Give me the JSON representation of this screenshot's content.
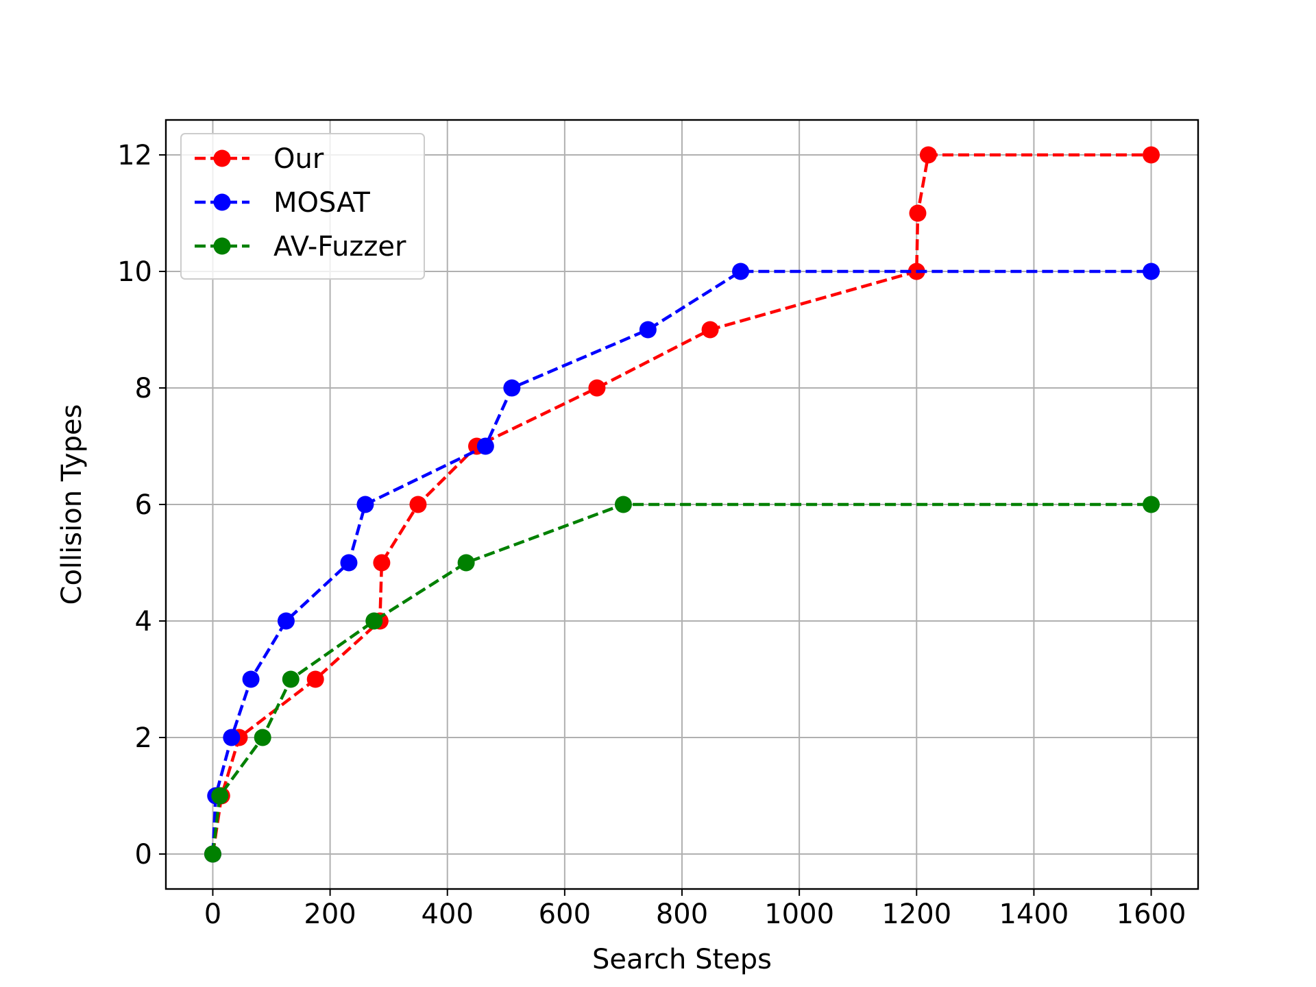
{
  "chart_data": {
    "type": "line",
    "xlabel": "Search Steps",
    "ylabel": "Collision Types",
    "xlim": [
      -80,
      1680
    ],
    "ylim": [
      -0.6,
      12.6
    ],
    "xticks": [
      0,
      200,
      400,
      600,
      800,
      1000,
      1200,
      1400,
      1600
    ],
    "yticks": [
      0,
      2,
      4,
      6,
      8,
      10,
      12
    ],
    "grid": true,
    "legend_position": "top-left",
    "line_style": "dashed",
    "marker": "circle",
    "series": [
      {
        "name": "Our",
        "color": "#ff0000",
        "x": [
          0,
          15,
          45,
          175,
          285,
          288,
          350,
          450,
          655,
          848,
          1200,
          1202,
          1220,
          1600
        ],
        "y": [
          0,
          1,
          2,
          3,
          4,
          5,
          6,
          7,
          8,
          9,
          10,
          11,
          12,
          12
        ]
      },
      {
        "name": "MOSAT",
        "color": "#0000ff",
        "x": [
          0,
          5,
          32,
          65,
          125,
          232,
          260,
          465,
          510,
          742,
          900,
          1600
        ],
        "y": [
          0,
          1,
          2,
          3,
          4,
          5,
          6,
          7,
          8,
          9,
          10,
          10
        ]
      },
      {
        "name": "AV-Fuzzer",
        "color": "#008000",
        "x": [
          0,
          12,
          85,
          133,
          275,
          432,
          700,
          1600
        ],
        "y": [
          0,
          1,
          2,
          3,
          4,
          5,
          6,
          6
        ]
      }
    ]
  }
}
